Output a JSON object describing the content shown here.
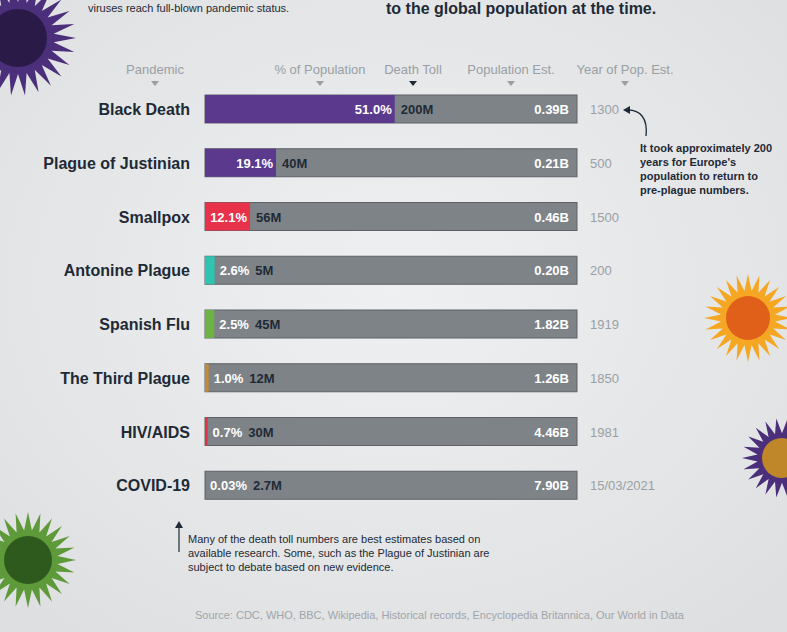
{
  "chart_data": {
    "type": "bar",
    "orientation": "horizontal",
    "subtitle_left": "viruses reach full-blown pandemic status.",
    "title": "to the global population at the time.",
    "category_header": "Pandemic",
    "categories": [
      "Black Death",
      "Plague of Justinian",
      "Smallpox",
      "Antonine Plague",
      "Spanish Flu",
      "The Third Plague",
      "HIV/AIDS",
      "COVID-19"
    ],
    "series": [
      {
        "name": "% of Population",
        "values": [
          51.0,
          19.1,
          12.1,
          2.6,
          2.5,
          1.0,
          0.7,
          0.03
        ],
        "value_labels": [
          "51.0%",
          "19.1%",
          "12.1%",
          "2.6%",
          "2.5%",
          "1.0%",
          "0.7%",
          "0.03%"
        ],
        "colors": [
          "#5b3a8e",
          "#5b3a8e",
          "#e8324a",
          "#2ec4b0",
          "#6db245",
          "#c08a3e",
          "#e03244",
          "#e03244"
        ]
      }
    ],
    "death_toll": {
      "name": "Death Toll",
      "labels": [
        "200M",
        "40M",
        "56M",
        "5M",
        "45M",
        "12M",
        "30M",
        "2.7M"
      ]
    },
    "population_est": {
      "name": "Population Est.",
      "labels": [
        "0.39B",
        "0.21B",
        "0.46B",
        "0.20B",
        "1.82B",
        "1.26B",
        "4.46B",
        "7.90B"
      ]
    },
    "year_of_pop_est": {
      "name": "Year of Pop. Est.",
      "labels": [
        "1300",
        "500",
        "1500",
        "200",
        "1919",
        "1850",
        "1981",
        "15/03/2021"
      ]
    },
    "xlim": [
      0,
      100
    ],
    "tick_labels": false,
    "grid": false,
    "data_labels": true,
    "annotations": [
      "It took approximately 200 years for Europe's population to return to pre-plague numbers.",
      "Many of the death toll numbers are best estimates based on available research. Some, such as the Plague of Justinian are subject to debate based on new evidence."
    ],
    "source": "Source: CDC, WHO, BBC, Wikipedia, Historical records, Encyclopedia Britannica, Our World in Data"
  }
}
